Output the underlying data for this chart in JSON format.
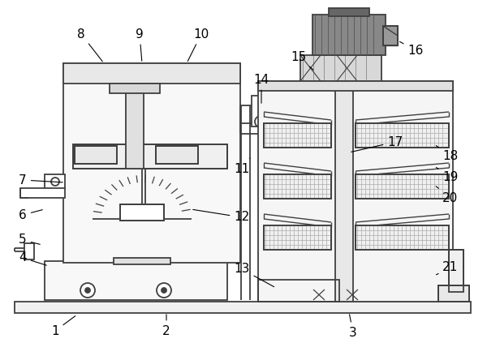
{
  "bg_color": "#ffffff",
  "line_color": "#404040",
  "line_width": 1.3,
  "label_fontsize": 11,
  "label_pairs": [
    [
      "1",
      68,
      408,
      95,
      388
    ],
    [
      "2",
      205,
      408,
      205,
      385
    ],
    [
      "3",
      435,
      410,
      430,
      385
    ],
    [
      "4",
      28,
      318,
      60,
      328
    ],
    [
      "5",
      28,
      296,
      52,
      302
    ],
    [
      "6",
      28,
      265,
      55,
      258
    ],
    [
      "7",
      28,
      222,
      80,
      225
    ],
    [
      "8",
      100,
      42,
      128,
      78
    ],
    [
      "9",
      172,
      42,
      175,
      78
    ],
    [
      "10",
      248,
      42,
      230,
      78
    ],
    [
      "11",
      298,
      208,
      308,
      195
    ],
    [
      "12",
      298,
      268,
      235,
      258
    ],
    [
      "13",
      298,
      332,
      340,
      355
    ],
    [
      "14",
      322,
      98,
      322,
      130
    ],
    [
      "15",
      368,
      70,
      388,
      88
    ],
    [
      "16",
      512,
      62,
      490,
      50
    ],
    [
      "17",
      487,
      175,
      430,
      188
    ],
    [
      "18",
      555,
      192,
      535,
      178
    ],
    [
      "19",
      555,
      218,
      535,
      205
    ],
    [
      "20",
      555,
      244,
      535,
      228
    ],
    [
      "21",
      555,
      330,
      535,
      340
    ]
  ]
}
